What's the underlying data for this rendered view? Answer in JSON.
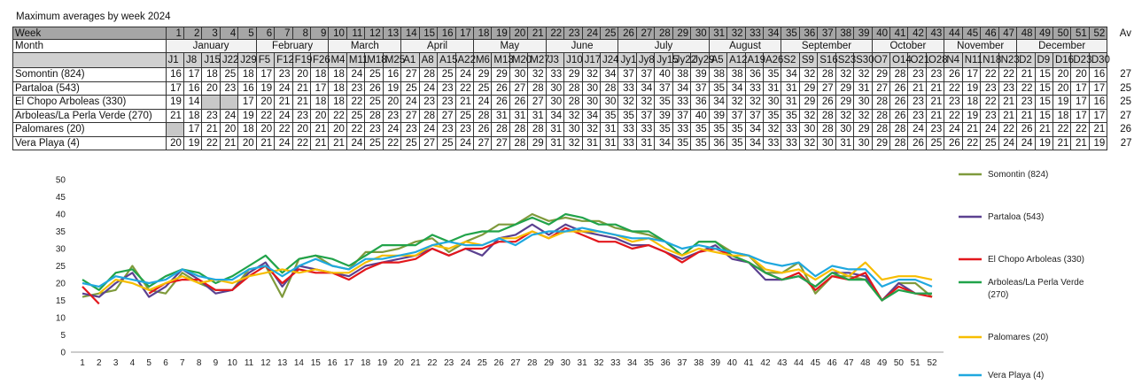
{
  "title": "Maximum averages by week 2024",
  "table": {
    "week_label": "Week",
    "month_label": "Month",
    "av_label": "Av",
    "weeks": [
      1,
      2,
      3,
      4,
      5,
      6,
      7,
      8,
      9,
      10,
      11,
      12,
      13,
      14,
      15,
      16,
      17,
      18,
      19,
      20,
      21,
      22,
      23,
      24,
      25,
      26,
      27,
      28,
      29,
      30,
      31,
      32,
      33,
      34,
      35,
      36,
      37,
      38,
      39,
      40,
      41,
      42,
      43,
      44,
      45,
      46,
      47,
      48,
      49,
      50,
      51,
      52
    ],
    "months": [
      {
        "name": "January",
        "span": 5
      },
      {
        "name": "February",
        "span": 4
      },
      {
        "name": "March",
        "span": 4
      },
      {
        "name": "April",
        "span": 4
      },
      {
        "name": "May",
        "span": 4
      },
      {
        "name": "June",
        "span": 4
      },
      {
        "name": "July",
        "span": 5
      },
      {
        "name": "August",
        "span": 4
      },
      {
        "name": "September",
        "span": 5
      },
      {
        "name": "October",
        "span": 4
      },
      {
        "name": "November",
        "span": 4
      },
      {
        "name": "December",
        "span": 5
      }
    ],
    "date_codes": [
      "J1",
      "J8",
      "J15",
      "J22",
      "J29",
      "F5",
      "F12",
      "F19",
      "F26",
      "M4",
      "M11",
      "M18",
      "M25",
      "A1",
      "A8",
      "A15",
      "A22",
      "M6",
      "M13",
      "M20",
      "M27",
      "J3",
      "J10",
      "J17",
      "J24",
      "Jy1",
      "Jy8",
      "Jy15",
      "Jy22",
      "Jy29",
      "A5",
      "A12",
      "A19",
      "A26",
      "S2",
      "S9",
      "S16",
      "S23",
      "S30",
      "O7",
      "O14",
      "O21",
      "O28",
      "N4",
      "N11",
      "N18",
      "N23",
      "D2",
      "D9",
      "D16",
      "D23",
      "D30"
    ],
    "rows": [
      {
        "name": "Somontin (824)",
        "av": "27",
        "values": [
          16,
          17,
          18,
          25,
          18,
          17,
          23,
          20,
          18,
          18,
          24,
          25,
          16,
          27,
          28,
          25,
          24,
          29,
          29,
          30,
          32,
          33,
          29,
          32,
          34,
          37,
          37,
          40,
          38,
          39,
          38,
          38,
          36,
          35,
          34,
          32,
          28,
          32,
          32,
          29,
          28,
          23,
          23,
          26,
          17,
          22,
          22,
          21,
          15,
          20,
          20,
          16
        ]
      },
      {
        "name": "Partaloa (543)",
        "av": "25",
        "values": [
          17,
          16,
          20,
          23,
          16,
          19,
          24,
          21,
          17,
          18,
          23,
          26,
          19,
          25,
          24,
          23,
          22,
          25,
          26,
          27,
          28,
          30,
          28,
          30,
          28,
          33,
          34,
          37,
          34,
          37,
          35,
          34,
          33,
          31,
          31,
          29,
          27,
          29,
          31,
          27,
          26,
          21,
          21,
          22,
          19,
          23,
          23,
          22,
          15,
          20,
          17,
          17
        ]
      },
      {
        "name": "El Chopo Arboleas (330)",
        "av": "25",
        "values": [
          19,
          14,
          null,
          null,
          17,
          20,
          21,
          21,
          18,
          18,
          22,
          25,
          20,
          24,
          23,
          23,
          21,
          24,
          26,
          26,
          27,
          30,
          28,
          30,
          30,
          32,
          32,
          35,
          33,
          36,
          34,
          32,
          32,
          30,
          31,
          29,
          26,
          29,
          30,
          28,
          26,
          23,
          21,
          23,
          18,
          22,
          21,
          23,
          15,
          19,
          17,
          16
        ]
      },
      {
        "name": "Arboleas/La Perla Verde (270)",
        "av": "27",
        "values": [
          21,
          18,
          23,
          24,
          19,
          22,
          24,
          23,
          20,
          22,
          25,
          28,
          23,
          27,
          28,
          27,
          25,
          28,
          31,
          31,
          31,
          34,
          32,
          34,
          35,
          35,
          37,
          39,
          37,
          40,
          39,
          37,
          37,
          35,
          35,
          32,
          28,
          32,
          32,
          28,
          26,
          23,
          21,
          22,
          19,
          23,
          21,
          21,
          15,
          18,
          17,
          17
        ]
      },
      {
        "name": "Palomares (20)",
        "av": "26",
        "values": [
          null,
          17,
          21,
          20,
          18,
          20,
          22,
          20,
          21,
          20,
          22,
          23,
          24,
          23,
          24,
          23,
          23,
          26,
          28,
          28,
          28,
          31,
          30,
          32,
          31,
          33,
          33,
          35,
          33,
          35,
          35,
          35,
          34,
          32,
          33,
          30,
          28,
          30,
          29,
          28,
          28,
          24,
          23,
          24,
          21,
          24,
          22,
          26,
          21,
          22,
          22,
          21
        ]
      },
      {
        "name": "Vera Playa (4)",
        "av": "27",
        "values": [
          20,
          19,
          22,
          21,
          20,
          21,
          24,
          22,
          21,
          21,
          24,
          25,
          22,
          25,
          27,
          25,
          24,
          27,
          27,
          28,
          29,
          31,
          32,
          31,
          31,
          33,
          31,
          34,
          35,
          35,
          36,
          35,
          34,
          33,
          33,
          32,
          30,
          31,
          30,
          29,
          28,
          26,
          25,
          26,
          22,
          25,
          24,
          24,
          19,
          21,
          21,
          19
        ]
      }
    ]
  },
  "chart_data": {
    "type": "line",
    "title": "",
    "xlabel": "",
    "ylabel": "",
    "ylim": [
      0,
      50
    ],
    "yticks": [
      0,
      5,
      10,
      15,
      20,
      25,
      30,
      35,
      40,
      45,
      50
    ],
    "xlim": [
      1,
      52
    ],
    "legend": "right",
    "series": [
      {
        "name": "Somontin (824)",
        "color": "#7f9a3c",
        "row": 0
      },
      {
        "name": "Partaloa (543)",
        "color": "#5b4190",
        "row": 1
      },
      {
        "name": "El Chopo Arboleas (330)",
        "color": "#e3171c",
        "row": 2
      },
      {
        "name": "Arboleas/La Perla Verde (270)",
        "color": "#21a34a",
        "row": 3
      },
      {
        "name": "Palomares (20)",
        "color": "#f7bd00",
        "row": 4
      },
      {
        "name": "Vera Playa (4)",
        "color": "#1fa8df",
        "row": 5
      }
    ]
  }
}
